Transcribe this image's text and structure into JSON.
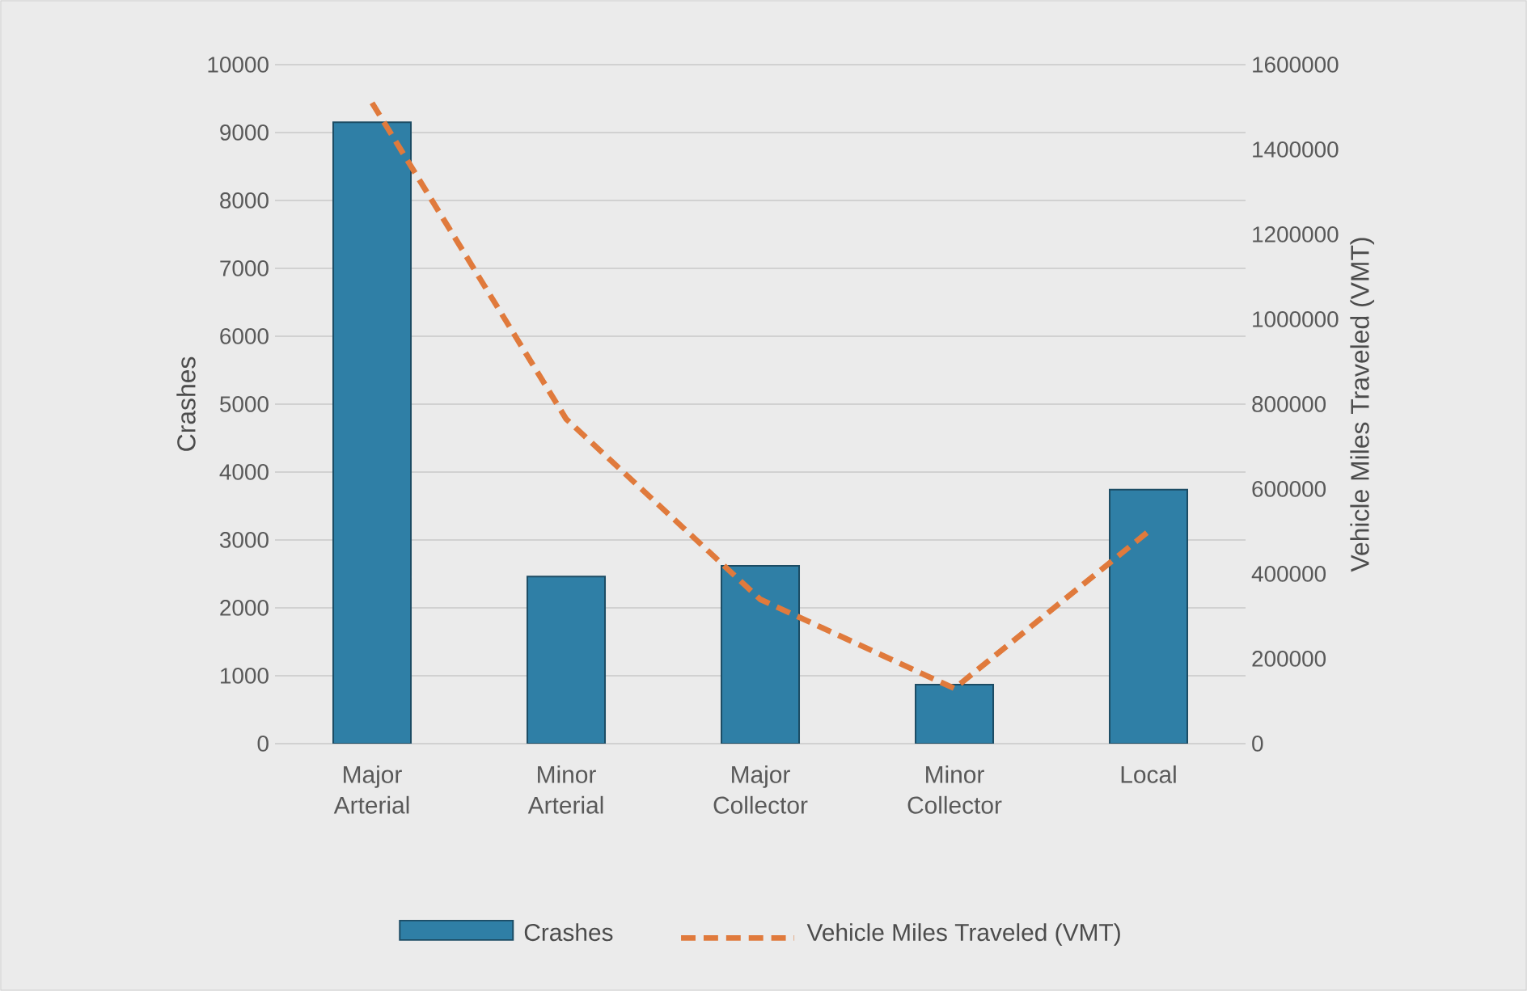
{
  "chart_data": {
    "type": "bar",
    "categories": [
      "Major Arterial",
      "Minor Arterial",
      "Major Collector",
      "Minor Collector",
      "Local"
    ],
    "series": [
      {
        "name": "Crashes",
        "color": "#2f7fa6",
        "values": [
          9150,
          2460,
          2620,
          870,
          3740
        ]
      },
      {
        "name": "Vehicle Miles Traveled (VMT)",
        "type": "line",
        "axis": "y2",
        "color": "#e07a3c",
        "line_style": "dashed",
        "values": [
          1510000,
          765000,
          340000,
          130000,
          500000
        ]
      }
    ],
    "ylabel": "Crashes",
    "y2label": "Vehicle Miles Traveled (VMT)",
    "ylim": [
      0,
      10000
    ],
    "yticks": [
      0,
      1000,
      2000,
      3000,
      4000,
      5000,
      6000,
      7000,
      8000,
      9000,
      10000
    ],
    "y2lim": [
      0,
      1600000
    ],
    "y2ticks": [
      0,
      200000,
      400000,
      600000,
      800000,
      1000000,
      1200000,
      1400000,
      1600000
    ],
    "grid": "y",
    "legend": "bottom"
  }
}
